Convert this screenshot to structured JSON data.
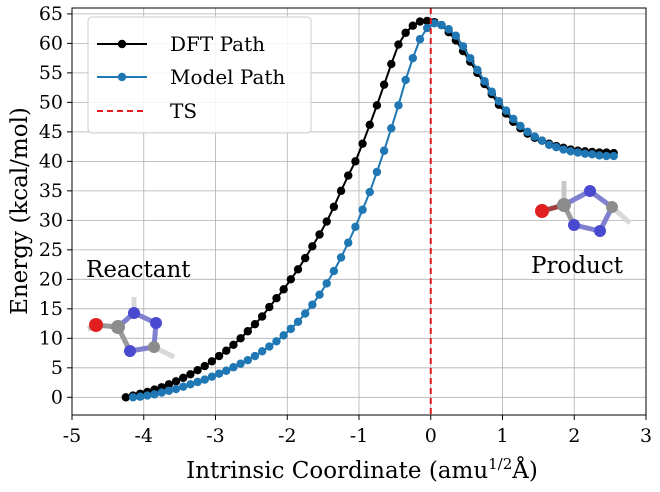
{
  "chart_data": {
    "type": "line",
    "xlabel": "Intrinsic Coordinate (amu",
    "xlabel_sup": "1/2",
    "xlabel_tail": "Å)",
    "ylabel": "Energy (kcal/mol)",
    "xlim": [
      -5,
      3
    ],
    "ylim": [
      -3,
      66
    ],
    "xticks": [
      -5,
      -4,
      -3,
      -2,
      -1,
      0,
      1,
      2,
      3
    ],
    "yticks": [
      0,
      5,
      10,
      15,
      20,
      25,
      30,
      35,
      40,
      45,
      50,
      55,
      60,
      65
    ],
    "grid": true,
    "legend_position": "top-left",
    "ts_x": 0.0,
    "series": [
      {
        "name": "DFT Path",
        "color": "#000000",
        "x": [
          -4.25,
          -4.15,
          -4.05,
          -3.95,
          -3.85,
          -3.75,
          -3.65,
          -3.55,
          -3.45,
          -3.35,
          -3.25,
          -3.15,
          -3.05,
          -2.95,
          -2.85,
          -2.75,
          -2.65,
          -2.55,
          -2.45,
          -2.35,
          -2.25,
          -2.15,
          -2.05,
          -1.95,
          -1.85,
          -1.75,
          -1.65,
          -1.55,
          -1.45,
          -1.35,
          -1.25,
          -1.15,
          -1.05,
          -0.95,
          -0.85,
          -0.75,
          -0.65,
          -0.55,
          -0.45,
          -0.35,
          -0.25,
          -0.15,
          -0.05,
          0.05,
          0.15,
          0.25,
          0.35,
          0.45,
          0.55,
          0.65,
          0.75,
          0.85,
          0.95,
          1.05,
          1.15,
          1.25,
          1.35,
          1.45,
          1.55,
          1.65,
          1.75,
          1.85,
          1.95,
          2.05,
          2.15,
          2.25,
          2.35,
          2.45,
          2.55
        ],
        "y": [
          0.0,
          0.3,
          0.6,
          0.9,
          1.3,
          1.7,
          2.2,
          2.7,
          3.3,
          3.9,
          4.6,
          5.3,
          6.1,
          7.0,
          7.9,
          8.9,
          10.0,
          11.2,
          12.4,
          13.7,
          15.3,
          16.8,
          18.3,
          20.0,
          21.7,
          23.6,
          25.6,
          27.6,
          29.8,
          32.3,
          35.0,
          37.6,
          40.0,
          43.0,
          46.2,
          49.5,
          53.0,
          56.5,
          59.8,
          61.8,
          63.0,
          63.7,
          63.8,
          63.6,
          63.1,
          61.9,
          60.5,
          58.7,
          56.9,
          55.0,
          53.1,
          51.4,
          49.6,
          48.1,
          46.7,
          45.6,
          44.7,
          44.0,
          43.5,
          43.0,
          42.6,
          42.3,
          42.0,
          41.8,
          41.7,
          41.6,
          41.5,
          41.5,
          41.4
        ]
      },
      {
        "name": "Model Path",
        "color": "#1f77b4",
        "x": [
          -4.15,
          -4.05,
          -3.95,
          -3.85,
          -3.75,
          -3.65,
          -3.55,
          -3.45,
          -3.35,
          -3.25,
          -3.15,
          -3.05,
          -2.95,
          -2.85,
          -2.75,
          -2.65,
          -2.55,
          -2.45,
          -2.35,
          -2.25,
          -2.15,
          -2.05,
          -1.95,
          -1.85,
          -1.75,
          -1.65,
          -1.55,
          -1.45,
          -1.35,
          -1.25,
          -1.15,
          -1.05,
          -0.95,
          -0.85,
          -0.75,
          -0.65,
          -0.55,
          -0.45,
          -0.35,
          -0.25,
          -0.15,
          -0.05,
          0.05,
          0.15,
          0.25,
          0.35,
          0.45,
          0.55,
          0.65,
          0.75,
          0.85,
          0.95,
          1.05,
          1.15,
          1.25,
          1.35,
          1.45,
          1.55,
          1.65,
          1.75,
          1.85,
          1.95,
          2.05,
          2.15,
          2.25,
          2.35,
          2.45,
          2.55
        ],
        "y": [
          0.0,
          0.1,
          0.3,
          0.5,
          0.8,
          1.1,
          1.4,
          1.8,
          2.2,
          2.6,
          3.0,
          3.5,
          4.0,
          4.5,
          5.1,
          5.7,
          6.3,
          7.0,
          7.8,
          8.6,
          9.5,
          10.5,
          11.6,
          12.8,
          14.2,
          15.7,
          17.4,
          19.3,
          21.4,
          23.7,
          26.2,
          28.9,
          31.8,
          34.8,
          38.2,
          41.8,
          45.6,
          49.5,
          53.8,
          57.5,
          60.7,
          62.6,
          63.4,
          63.1,
          62.4,
          61.3,
          59.5,
          57.5,
          55.5,
          53.6,
          51.8,
          50.2,
          48.6,
          47.2,
          46.0,
          45.0,
          44.2,
          43.5,
          42.8,
          42.4,
          42.0,
          41.7,
          41.5,
          41.3,
          41.2,
          41.0,
          40.9,
          40.9
        ]
      }
    ],
    "ts_label": "TS",
    "ts_color": "#e41a1c",
    "annotations": [
      {
        "text": "Reactant"
      },
      {
        "text": "Product"
      }
    ]
  }
}
